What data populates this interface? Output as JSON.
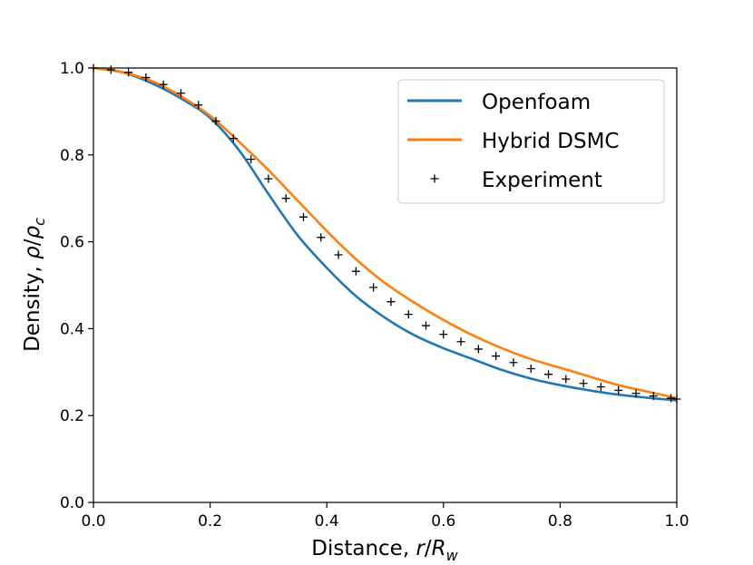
{
  "chart_data": {
    "type": "line",
    "title": "",
    "xlabel": {
      "prefix": "Distance, ",
      "var": "r",
      "slash": "/",
      "sym": "R",
      "sub": "w"
    },
    "ylabel": {
      "prefix": "Density, ",
      "var": "ρ",
      "slash": "/",
      "sym": "ρ",
      "sub": "c"
    },
    "xlim": [
      0.0,
      1.0
    ],
    "ylim": [
      0.0,
      1.0
    ],
    "xticks": [
      0.0,
      0.2,
      0.4,
      0.6,
      0.8,
      1.0
    ],
    "yticks": [
      0.0,
      0.2,
      0.4,
      0.6,
      0.8,
      1.0
    ],
    "xtick_labels": [
      "0.0",
      "0.2",
      "0.4",
      "0.6",
      "0.8",
      "1.0"
    ],
    "ytick_labels": [
      "0.0",
      "0.2",
      "0.4",
      "0.6",
      "0.8",
      "1.0"
    ],
    "grid": false,
    "legend_position": "top-right",
    "series": [
      {
        "name": "Openfoam",
        "style": "line",
        "color": "#1f77b4",
        "x": [
          0.0,
          0.05,
          0.1,
          0.15,
          0.2,
          0.25,
          0.3,
          0.35,
          0.4,
          0.45,
          0.5,
          0.55,
          0.6,
          0.65,
          0.7,
          0.75,
          0.8,
          0.85,
          0.9,
          0.95,
          1.0
        ],
        "y": [
          1.0,
          0.99,
          0.965,
          0.93,
          0.885,
          0.81,
          0.71,
          0.615,
          0.54,
          0.475,
          0.425,
          0.385,
          0.355,
          0.33,
          0.305,
          0.285,
          0.27,
          0.258,
          0.248,
          0.241,
          0.235
        ]
      },
      {
        "name": "Hybrid DSMC",
        "style": "line",
        "color": "#ff7f0e",
        "x": [
          0.0,
          0.05,
          0.1,
          0.15,
          0.2,
          0.25,
          0.3,
          0.35,
          0.4,
          0.45,
          0.5,
          0.55,
          0.6,
          0.65,
          0.7,
          0.75,
          0.8,
          0.85,
          0.9,
          0.95,
          1.0
        ],
        "y": [
          1.0,
          0.99,
          0.97,
          0.935,
          0.89,
          0.83,
          0.765,
          0.695,
          0.625,
          0.56,
          0.505,
          0.46,
          0.42,
          0.385,
          0.355,
          0.33,
          0.31,
          0.29,
          0.27,
          0.255,
          0.24
        ]
      },
      {
        "name": "Experiment",
        "style": "marker",
        "marker": "+",
        "color": "#000000",
        "x": [
          0.0,
          0.03,
          0.06,
          0.09,
          0.12,
          0.15,
          0.18,
          0.21,
          0.24,
          0.27,
          0.3,
          0.33,
          0.36,
          0.39,
          0.42,
          0.45,
          0.48,
          0.51,
          0.54,
          0.57,
          0.6,
          0.63,
          0.66,
          0.69,
          0.72,
          0.75,
          0.78,
          0.81,
          0.84,
          0.87,
          0.9,
          0.93,
          0.96,
          0.99,
          1.0
        ],
        "y": [
          1.0,
          0.996,
          0.99,
          0.978,
          0.962,
          0.942,
          0.915,
          0.878,
          0.838,
          0.79,
          0.745,
          0.7,
          0.657,
          0.61,
          0.57,
          0.532,
          0.495,
          0.462,
          0.433,
          0.407,
          0.387,
          0.37,
          0.353,
          0.337,
          0.322,
          0.308,
          0.295,
          0.284,
          0.274,
          0.266,
          0.258,
          0.251,
          0.245,
          0.24,
          0.238
        ]
      }
    ]
  }
}
